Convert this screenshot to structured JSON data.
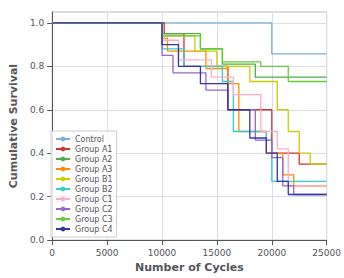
{
  "chart_data": {
    "type": "line",
    "xlabel": "Number of Cycles",
    "ylabel": "Cumulative Survival",
    "xlim": [
      0,
      25000
    ],
    "ylim": [
      0.0,
      1.05
    ],
    "xticks": [
      0,
      5000,
      10000,
      15000,
      20000,
      25000
    ],
    "yticks": [
      {
        "value": 0.0,
        "label": "0.0"
      },
      0.2,
      0.4,
      0.6,
      0.8,
      {
        "value": 1.0,
        "label": "1.0"
      }
    ],
    "grid": true,
    "legend": "lower left",
    "series": [
      {
        "name": "Control",
        "color": "#7bafd4",
        "x": [
          0,
          10000,
          20000,
          20000,
          25000
        ],
        "values": [
          1.0,
          1.0,
          1.0,
          0.857,
          0.857
        ]
      },
      {
        "name": "Group A1",
        "color": "#cc3333",
        "x": [
          0,
          10000,
          10200,
          10200,
          12000,
          12000,
          16000,
          16000,
          17500,
          17500,
          20000,
          20000,
          21500,
          21500,
          22500,
          22500,
          25000
        ],
        "values": [
          1.0,
          1.0,
          1.0,
          0.95,
          0.95,
          0.8,
          0.8,
          0.6,
          0.6,
          0.6,
          0.6,
          0.4,
          0.4,
          0.4,
          0.4,
          0.35,
          0.35
        ]
      },
      {
        "name": "Group A2",
        "color": "#4daf4a",
        "x": [
          0,
          10000,
          10000,
          13500,
          13500,
          15500,
          15500,
          18500,
          18500,
          21000,
          21000,
          25000
        ],
        "values": [
          1.0,
          1.0,
          0.95,
          0.95,
          0.88,
          0.88,
          0.81,
          0.81,
          0.75,
          0.75,
          0.75,
          0.75
        ]
      },
      {
        "name": "Group A3",
        "color": "#ff8c00",
        "x": [
          0,
          10000,
          10000,
          10500,
          10500,
          14000,
          14000,
          16000,
          16000,
          17000,
          17000,
          19500,
          19500,
          21000,
          21000,
          22000,
          22000,
          25000
        ],
        "values": [
          1.0,
          1.0,
          0.93,
          0.93,
          0.87,
          0.87,
          0.79,
          0.79,
          0.72,
          0.72,
          0.5,
          0.5,
          0.4,
          0.4,
          0.3,
          0.3,
          0.25,
          0.25
        ]
      },
      {
        "name": "Group B1",
        "color": "#cccc00",
        "x": [
          0,
          10000,
          10000,
          13000,
          13000,
          15000,
          15000,
          18000,
          18000,
          20500,
          20500,
          21500,
          21500,
          22500,
          22500,
          23500,
          23500,
          25000
        ],
        "values": [
          1.0,
          1.0,
          0.94,
          0.94,
          0.87,
          0.87,
          0.8,
          0.8,
          0.73,
          0.73,
          0.6,
          0.6,
          0.5,
          0.5,
          0.4,
          0.4,
          0.35,
          0.35
        ]
      },
      {
        "name": "Group B2",
        "color": "#33cccc",
        "x": [
          0,
          10000,
          10000,
          12000,
          12000,
          15500,
          15500,
          16500,
          16500,
          19500,
          19500,
          20000,
          20000,
          20500,
          20500,
          25000
        ],
        "values": [
          1.0,
          1.0,
          0.88,
          0.88,
          0.8,
          0.8,
          0.73,
          0.73,
          0.5,
          0.5,
          0.46,
          0.46,
          0.27,
          0.27,
          0.27,
          0.27
        ]
      },
      {
        "name": "Group C1",
        "color": "#ffaacc",
        "x": [
          0,
          10000,
          10000,
          11500,
          11500,
          14500,
          14500,
          16500,
          16500,
          19000,
          19000,
          20500,
          20500,
          21500,
          21500,
          22500,
          22500,
          25000
        ],
        "values": [
          1.0,
          1.0,
          0.92,
          0.92,
          0.83,
          0.83,
          0.75,
          0.75,
          0.67,
          0.67,
          0.5,
          0.5,
          0.42,
          0.42,
          0.25,
          0.25,
          0.25,
          0.25
        ]
      },
      {
        "name": "Group C2",
        "color": "#9966cc",
        "x": [
          0,
          10000,
          10000,
          11000,
          11000,
          14000,
          14000,
          16000,
          16000,
          18500,
          18500,
          20000,
          20000,
          21000,
          21000,
          22000,
          22000,
          25000
        ],
        "values": [
          1.0,
          1.0,
          0.85,
          0.85,
          0.77,
          0.77,
          0.69,
          0.69,
          0.6,
          0.6,
          0.46,
          0.46,
          0.38,
          0.38,
          0.25,
          0.25,
          0.21,
          0.21
        ]
      },
      {
        "name": "Group C3",
        "color": "#66cc33",
        "x": [
          0,
          10000,
          10000,
          13500,
          13500,
          15500,
          15500,
          19000,
          19000,
          21500,
          21500,
          22500,
          22500,
          25000
        ],
        "values": [
          1.0,
          1.0,
          0.94,
          0.94,
          0.88,
          0.88,
          0.82,
          0.82,
          0.8,
          0.8,
          0.73,
          0.73,
          0.73,
          0.73
        ]
      },
      {
        "name": "Group C4",
        "color": "#3333aa",
        "x": [
          0,
          10000,
          10000,
          11500,
          11500,
          13500,
          13500,
          16000,
          16000,
          18000,
          18000,
          19500,
          19500,
          20500,
          20500,
          21500,
          21500,
          25000
        ],
        "values": [
          1.0,
          1.0,
          0.9,
          0.9,
          0.8,
          0.8,
          0.72,
          0.72,
          0.6,
          0.6,
          0.47,
          0.47,
          0.4,
          0.4,
          0.27,
          0.27,
          0.21,
          0.21
        ]
      }
    ]
  }
}
